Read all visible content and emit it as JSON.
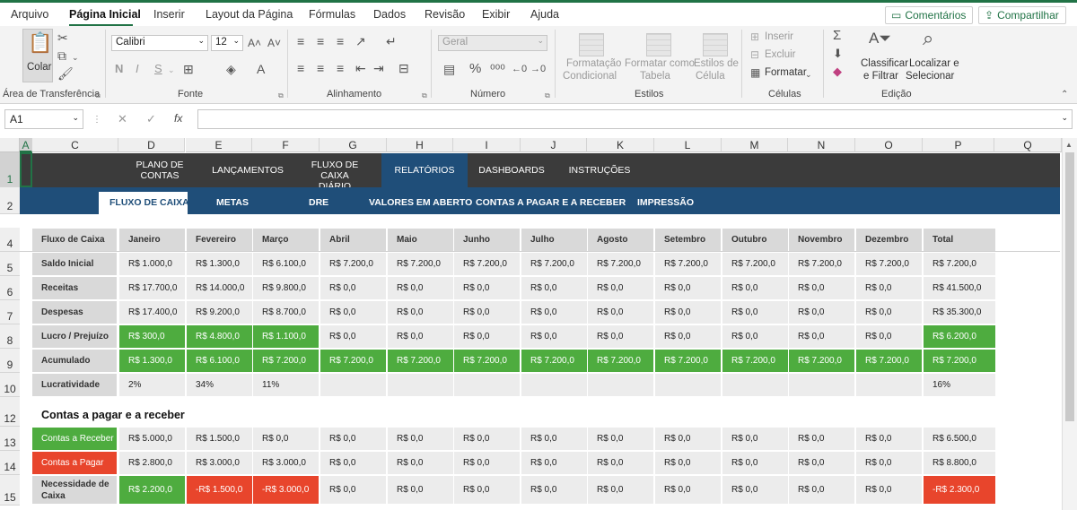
{
  "menu": {
    "items": [
      "Arquivo",
      "Página Inicial",
      "Inserir",
      "Layout da Página",
      "Fórmulas",
      "Dados",
      "Revisão",
      "Exibir",
      "Ajuda"
    ],
    "comments_label": "Comentários",
    "share_label": "Compartilhar"
  },
  "ribbon": {
    "clipboard": {
      "paste_label": "Colar",
      "group_label": "Área de Transferência"
    },
    "font": {
      "name": "Calibri",
      "size": "12",
      "bold": "N",
      "italic": "I",
      "underline": "S",
      "group_label": "Fonte"
    },
    "alignment": {
      "group_label": "Alinhamento"
    },
    "number": {
      "format": "Geral",
      "percent": "%",
      "group_label": "Número"
    },
    "styles": {
      "cond_format": [
        "Formatação",
        "Condicional"
      ],
      "format_table": [
        "Formatar como",
        "Tabela"
      ],
      "cell_styles": [
        "Estilos de",
        "Célula"
      ],
      "group_label": "Estilos"
    },
    "cells": {
      "insert": "Inserir",
      "delete": "Excluir",
      "format": "Formatar",
      "group_label": "Células"
    },
    "editing": {
      "sort_filter": [
        "Classificar",
        "e Filtrar"
      ],
      "find_select": [
        "Localizar e",
        "Selecionar"
      ],
      "group_label": "Edição"
    }
  },
  "formula_bar": {
    "cell_ref": "A1",
    "fx": "fx",
    "value": ""
  },
  "columns": [
    "A",
    "C",
    "D",
    "E",
    "F",
    "G",
    "H",
    "I",
    "J",
    "K",
    "L",
    "M",
    "N",
    "O",
    "P",
    "Q"
  ],
  "rows": [
    "1",
    "2",
    "4",
    "5",
    "6",
    "7",
    "8",
    "9",
    "10",
    "12",
    "13",
    "14",
    "15"
  ],
  "nav": {
    "main": [
      [
        "PLANO DE",
        "CONTAS"
      ],
      [
        "LANÇAMENTOS",
        ""
      ],
      [
        "FLUXO DE CAIXA",
        "DIÁRIO"
      ],
      [
        "RELATÓRIOS",
        ""
      ],
      [
        "DASHBOARDS",
        ""
      ],
      [
        "INSTRUÇÕES",
        ""
      ]
    ],
    "sub": [
      "FLUXO DE CAIXA",
      "METAS",
      "DRE",
      "VALORES EM ABERTO",
      "CONTAS A PAGAR E A  RECEBER",
      "IMPRESSÃO"
    ]
  },
  "cashflow": {
    "header": [
      "Fluxo de Caixa",
      "Janeiro",
      "Fevereiro",
      "Março",
      "Abril",
      "Maio",
      "Junho",
      "Julho",
      "Agosto",
      "Setembro",
      "Outubro",
      "Novembro",
      "Dezembro",
      "Total"
    ],
    "rows": [
      {
        "label": "Saldo Inicial",
        "values": [
          "R$ 1.000,0",
          "R$ 1.300,0",
          "R$ 6.100,0",
          "R$ 7.200,0",
          "R$ 7.200,0",
          "R$ 7.200,0",
          "R$ 7.200,0",
          "R$ 7.200,0",
          "R$ 7.200,0",
          "R$ 7.200,0",
          "R$ 7.200,0",
          "R$ 7.200,0",
          "R$ 7.200,0"
        ]
      },
      {
        "label": "Receitas",
        "values": [
          "R$ 17.700,0",
          "R$ 14.000,0",
          "R$ 9.800,0",
          "R$ 0,0",
          "R$ 0,0",
          "R$ 0,0",
          "R$ 0,0",
          "R$ 0,0",
          "R$ 0,0",
          "R$ 0,0",
          "R$ 0,0",
          "R$ 0,0",
          "R$ 41.500,0"
        ]
      },
      {
        "label": "Despesas",
        "values": [
          "R$ 17.400,0",
          "R$ 9.200,0",
          "R$ 8.700,0",
          "R$ 0,0",
          "R$ 0,0",
          "R$ 0,0",
          "R$ 0,0",
          "R$ 0,0",
          "R$ 0,0",
          "R$ 0,0",
          "R$ 0,0",
          "R$ 0,0",
          "R$ 35.300,0"
        ]
      },
      {
        "label": "Lucro / Prejuízo",
        "values": [
          "R$ 300,0",
          "R$ 4.800,0",
          "R$ 1.100,0",
          "R$ 0,0",
          "R$ 0,0",
          "R$ 0,0",
          "R$ 0,0",
          "R$ 0,0",
          "R$ 0,0",
          "R$ 0,0",
          "R$ 0,0",
          "R$ 0,0",
          "R$ 6.200,0"
        ],
        "fills": [
          "green",
          "green",
          "green",
          "",
          "",
          "",
          "",
          "",
          "",
          "",
          "",
          "",
          "green"
        ]
      },
      {
        "label": "Acumulado",
        "values": [
          "R$ 1.300,0",
          "R$ 6.100,0",
          "R$ 7.200,0",
          "R$ 7.200,0",
          "R$ 7.200,0",
          "R$ 7.200,0",
          "R$ 7.200,0",
          "R$ 7.200,0",
          "R$ 7.200,0",
          "R$ 7.200,0",
          "R$ 7.200,0",
          "R$ 7.200,0",
          "R$ 7.200,0"
        ],
        "fills": [
          "green",
          "green",
          "green",
          "green",
          "green",
          "green",
          "green",
          "green",
          "green",
          "green",
          "green",
          "green",
          "green"
        ]
      },
      {
        "label": "Lucratividade",
        "values": [
          "2%",
          "34%",
          "11%",
          "",
          "",
          "",
          "",
          "",
          "",
          "",
          "",
          "",
          "16%"
        ],
        "plain": true
      }
    ]
  },
  "payables": {
    "title": "Contas a pagar e a receber",
    "rows": [
      {
        "label": "Contas a Receber",
        "label_fill": "green",
        "values": [
          "R$ 5.000,0",
          "R$ 1.500,0",
          "R$ 0,0",
          "R$ 0,0",
          "R$ 0,0",
          "R$ 0,0",
          "R$ 0,0",
          "R$ 0,0",
          "R$ 0,0",
          "R$ 0,0",
          "R$ 0,0",
          "R$ 0,0",
          "R$ 6.500,0"
        ]
      },
      {
        "label": "Contas a Pagar",
        "label_fill": "red",
        "values": [
          "R$ 2.800,0",
          "R$ 3.000,0",
          "R$ 3.000,0",
          "R$ 0,0",
          "R$ 0,0",
          "R$ 0,0",
          "R$ 0,0",
          "R$ 0,0",
          "R$ 0,0",
          "R$ 0,0",
          "R$ 0,0",
          "R$ 0,0",
          "R$ 8.800,0"
        ]
      },
      {
        "label": "Necessidade de Caixa",
        "label_fill": "",
        "values": [
          "R$ 2.200,0",
          "-R$ 1.500,0",
          "-R$ 3.000,0",
          "R$ 0,0",
          "R$ 0,0",
          "R$ 0,0",
          "R$ 0,0",
          "R$ 0,0",
          "R$ 0,0",
          "R$ 0,0",
          "R$ 0,0",
          "R$ 0,0",
          "-R$ 2.300,0"
        ],
        "fills": [
          "green",
          "red",
          "red",
          "",
          "",
          "",
          "",
          "",
          "",
          "",
          "",
          "",
          "red"
        ]
      }
    ]
  },
  "colors": {
    "excel_green": "#217346",
    "nav_dark": "#3b3b3b",
    "nav_blue": "#1f4e79",
    "positive": "#4eac3f",
    "negative": "#e8452c"
  }
}
